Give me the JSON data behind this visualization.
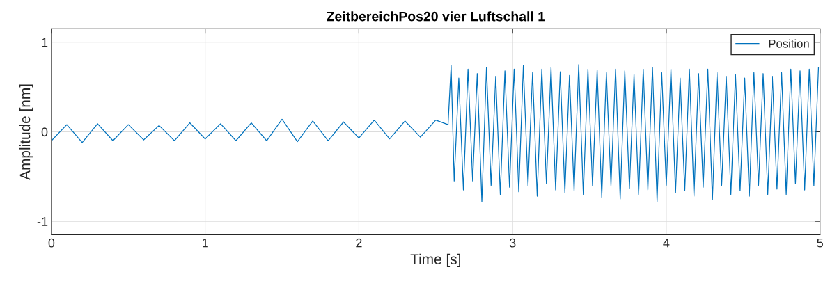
{
  "chart_data": {
    "type": "line",
    "title": "ZeitbereichPos20 vier Luftschall 1",
    "xlabel": "Time [s]",
    "ylabel": "Amplitude [nm]",
    "xlim": [
      0,
      5
    ],
    "ylim": [
      -1.15,
      1.15
    ],
    "xticks": [
      0,
      1,
      2,
      3,
      4,
      5
    ],
    "yticks": [
      -1,
      0,
      1
    ],
    "grid": true,
    "legend": "top right",
    "series": [
      {
        "name": "Position",
        "color": "#0072bd",
        "x": [
          0,
          0.1,
          0.2,
          0.3,
          0.4,
          0.5,
          0.6,
          0.7,
          0.8,
          0.9,
          1.0,
          1.1,
          1.2,
          1.3,
          1.4,
          1.5,
          1.6,
          1.7,
          1.8,
          1.9,
          2.0,
          2.1,
          2.2,
          2.3,
          2.4,
          2.5,
          2.58,
          2.6,
          2.62,
          2.65,
          2.68,
          2.71,
          2.74,
          2.77,
          2.8,
          2.83,
          2.86,
          2.89,
          2.92,
          2.95,
          2.98,
          3.01,
          3.04,
          3.07,
          3.1,
          3.13,
          3.16,
          3.19,
          3.22,
          3.25,
          3.28,
          3.31,
          3.34,
          3.37,
          3.4,
          3.43,
          3.46,
          3.49,
          3.52,
          3.55,
          3.58,
          3.61,
          3.64,
          3.67,
          3.7,
          3.73,
          3.76,
          3.79,
          3.82,
          3.85,
          3.88,
          3.91,
          3.94,
          3.97,
          4.0,
          4.03,
          4.06,
          4.09,
          4.12,
          4.15,
          4.18,
          4.21,
          4.24,
          4.27,
          4.3,
          4.33,
          4.36,
          4.39,
          4.42,
          4.45,
          4.48,
          4.51,
          4.54,
          4.57,
          4.6,
          4.63,
          4.66,
          4.69,
          4.72,
          4.75,
          4.78,
          4.81,
          4.84,
          4.87,
          4.9,
          4.93,
          4.96,
          4.99
        ],
        "values": [
          -0.1,
          0.08,
          -0.12,
          0.09,
          -0.1,
          0.08,
          -0.09,
          0.07,
          -0.1,
          0.1,
          -0.08,
          0.09,
          -0.1,
          0.1,
          -0.1,
          0.14,
          -0.11,
          0.12,
          -0.1,
          0.11,
          -0.07,
          0.13,
          -0.08,
          0.12,
          -0.06,
          0.13,
          0.08,
          0.74,
          -0.55,
          0.6,
          -0.65,
          0.7,
          -0.55,
          0.65,
          -0.78,
          0.72,
          -0.6,
          0.62,
          -0.7,
          0.68,
          -0.62,
          0.7,
          -0.67,
          0.74,
          -0.6,
          0.66,
          -0.72,
          0.7,
          -0.58,
          0.72,
          -0.65,
          0.67,
          -0.68,
          0.63,
          -0.66,
          0.75,
          -0.7,
          0.7,
          -0.6,
          0.69,
          -0.73,
          0.66,
          -0.6,
          0.7,
          -0.75,
          0.68,
          -0.63,
          0.64,
          -0.7,
          0.7,
          -0.65,
          0.72,
          -0.78,
          0.66,
          -0.6,
          0.7,
          -0.68,
          0.6,
          -0.66,
          0.7,
          -0.72,
          0.65,
          -0.62,
          0.7,
          -0.76,
          0.66,
          -0.6,
          0.62,
          -0.7,
          0.64,
          -0.66,
          0.6,
          -0.72,
          0.66,
          -0.6,
          0.65,
          -0.7,
          0.62,
          -0.64,
          0.66,
          -0.7,
          0.7,
          -0.58,
          0.68,
          -0.65,
          0.7,
          -0.6,
          0.72
        ]
      }
    ]
  }
}
